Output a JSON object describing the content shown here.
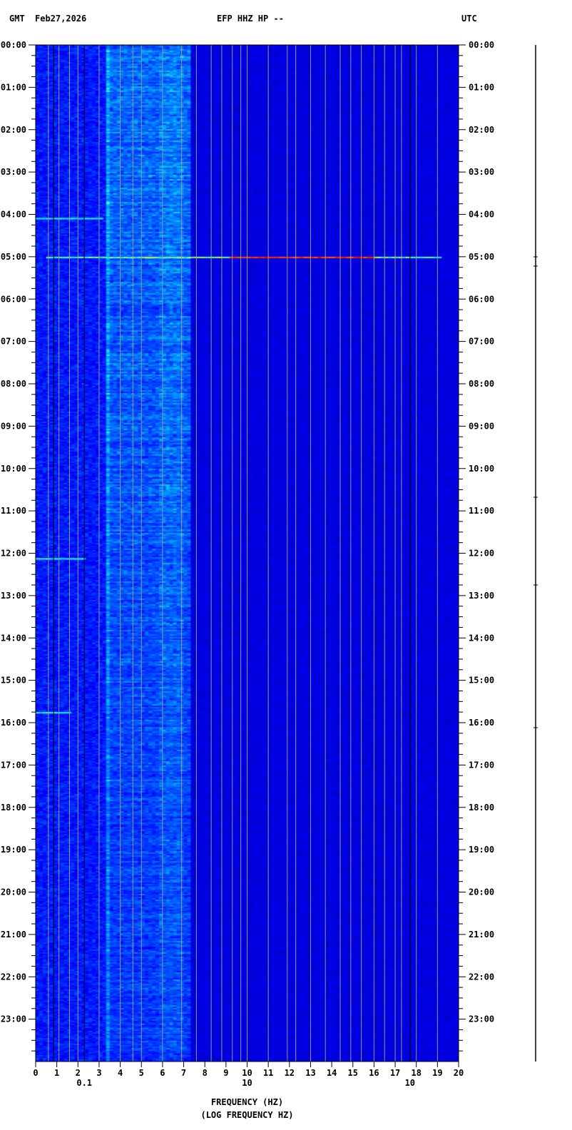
{
  "header": {
    "left_zone": "GMT",
    "date": "Feb27,2026",
    "title": "EFP HHZ HP --",
    "right_zone": "UTC"
  },
  "chart_data": {
    "type": "heatmap",
    "title": "EFP HHZ HP --",
    "xlabel": "FREQUENCY (HZ)",
    "xlabel_overlay": "(LOG FREQUENCY HZ)",
    "xlim": [
      0,
      20
    ],
    "x_ticks": [
      "0",
      "1",
      "2",
      "3",
      "4",
      "5",
      "6",
      "7",
      "8",
      "9",
      "10",
      "11",
      "12",
      "13",
      "14",
      "15",
      "16",
      "17",
      "18",
      "19",
      "20"
    ],
    "x_extra_ticks": [
      {
        "value": 2.3,
        "label": "0.1"
      },
      {
        "value": 10,
        "label": "10"
      },
      {
        "value": 17.7,
        "label": "10"
      }
    ],
    "y_ticks": [
      "00:00",
      "01:00",
      "02:00",
      "03:00",
      "04:00",
      "05:00",
      "06:00",
      "07:00",
      "08:00",
      "09:00",
      "10:00",
      "11:00",
      "12:00",
      "13:00",
      "14:00",
      "15:00",
      "16:00",
      "17:00",
      "18:00",
      "19:00",
      "20:00",
      "21:00",
      "22:00",
      "23:00"
    ],
    "ylim_hours": [
      0,
      24
    ],
    "colormap": [
      "#00008b",
      "#0000ff",
      "#00bfff",
      "#00ffff",
      "#ffff00",
      "#ff0000"
    ],
    "energy_band_hz": [
      3.5,
      7.2
    ],
    "peak_band_hz": [
      6,
      7
    ],
    "events": [
      {
        "time": "05:00",
        "freq_range_hz": [
          0.5,
          19
        ],
        "peak": "red"
      },
      {
        "time": "04:05",
        "freq_range_hz": [
          0,
          3
        ],
        "peak": "cyan"
      },
      {
        "time": "12:07",
        "freq_range_hz": [
          0,
          2.2
        ],
        "peak": "cyan"
      },
      {
        "time": "15:45",
        "freq_range_hz": [
          0,
          1.5
        ],
        "peak": "cyan"
      }
    ]
  }
}
